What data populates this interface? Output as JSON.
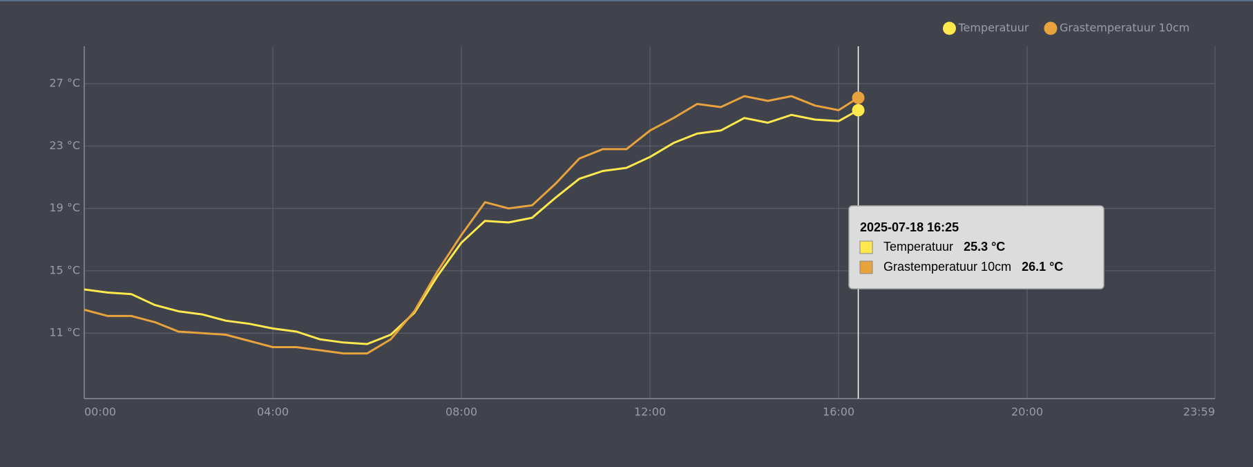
{
  "chart_data": {
    "type": "line",
    "x": [
      "00:00",
      "00:30",
      "01:00",
      "01:30",
      "02:00",
      "02:30",
      "03:00",
      "03:30",
      "04:00",
      "04:30",
      "05:00",
      "05:30",
      "06:00",
      "06:30",
      "07:00",
      "07:30",
      "08:00",
      "08:30",
      "09:00",
      "09:30",
      "10:00",
      "10:30",
      "11:00",
      "11:30",
      "12:00",
      "12:30",
      "13:00",
      "13:30",
      "14:00",
      "14:30",
      "15:00",
      "15:30",
      "16:00",
      "16:25"
    ],
    "series": [
      {
        "name": "Temperatuur",
        "color": "#ffe94d",
        "values": [
          13.8,
          13.6,
          13.5,
          12.8,
          12.4,
          12.2,
          11.8,
          11.6,
          11.3,
          11.1,
          10.6,
          10.4,
          10.3,
          10.9,
          12.3,
          14.7,
          16.8,
          18.2,
          18.1,
          18.4,
          19.7,
          20.9,
          21.4,
          21.6,
          22.3,
          23.2,
          23.8,
          24.0,
          24.8,
          24.5,
          25.0,
          24.7,
          24.6,
          25.3
        ]
      },
      {
        "name": "Grastemperatuur 10cm",
        "color": "#e8a33d",
        "values": [
          12.5,
          12.1,
          12.1,
          11.7,
          11.1,
          11.0,
          10.9,
          10.5,
          10.1,
          10.1,
          9.9,
          9.7,
          9.7,
          10.6,
          12.4,
          15.0,
          17.3,
          19.4,
          19.0,
          19.2,
          20.6,
          22.2,
          22.8,
          22.8,
          24.0,
          24.8,
          25.7,
          25.5,
          26.2,
          25.9,
          26.2,
          25.6,
          25.3,
          26.1
        ]
      }
    ],
    "xlim": [
      "00:00",
      "23:59"
    ],
    "xticks": [
      "00:00",
      "04:00",
      "08:00",
      "12:00",
      "16:00",
      "20:00",
      "23:59"
    ],
    "ylim": [
      6.8,
      29.4
    ],
    "yticks": [
      {
        "value": 11,
        "label": "11 °C"
      },
      {
        "value": 15,
        "label": "15 °C"
      },
      {
        "value": 19,
        "label": "19 °C"
      },
      {
        "value": 23,
        "label": "23 °C"
      },
      {
        "value": 27,
        "label": "27 °C"
      }
    ],
    "grid": true,
    "legend": "top-right",
    "tooltip": {
      "title": "2025-07-18 16:25",
      "labels": [
        "25.3 °C",
        "26.1 °C"
      ]
    }
  }
}
